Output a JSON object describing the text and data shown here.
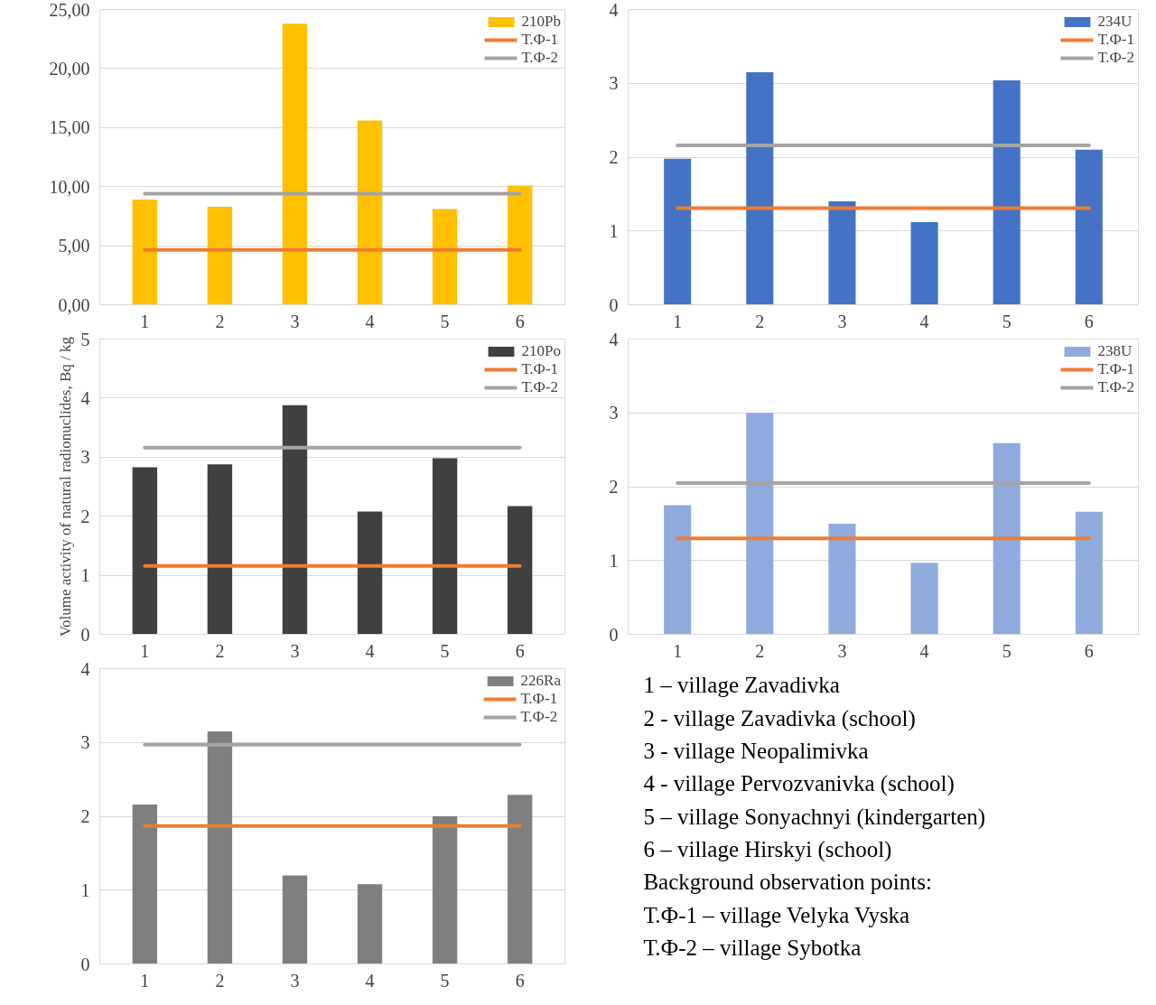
{
  "chart_data": [
    {
      "type": "bar",
      "categories": [
        "1",
        "2",
        "3",
        "4",
        "5",
        "6"
      ],
      "ylim": [
        0,
        25
      ],
      "yticks": [
        {
          "value": 0,
          "label": "0,00"
        },
        {
          "value": 5,
          "label": "5,00"
        },
        {
          "value": 10,
          "label": "10,00"
        },
        {
          "value": 15,
          "label": "15,00"
        },
        {
          "value": 20,
          "label": "20,00"
        },
        {
          "value": 25,
          "label": "25,00"
        }
      ],
      "grid": "y",
      "legend": "top right",
      "series": [
        {
          "name": "210Pb",
          "type": "bar",
          "color": "#ffc000",
          "values": [
            8.9,
            8.3,
            23.8,
            15.6,
            8.1,
            10.1
          ]
        },
        {
          "name": "Т.Ф-1",
          "type": "line",
          "color": "#ed7d31",
          "values": [
            4.65,
            4.65,
            4.65,
            4.65,
            4.65,
            4.65
          ]
        },
        {
          "name": "Т.Ф-2",
          "type": "line",
          "color": "#a5a5a5",
          "values": [
            9.4,
            9.4,
            9.4,
            9.4,
            9.4,
            9.4
          ]
        }
      ]
    },
    {
      "type": "bar",
      "categories": [
        "1",
        "2",
        "3",
        "4",
        "5",
        "6"
      ],
      "ylim": [
        0,
        4
      ],
      "yticks": [
        0,
        1,
        2,
        3,
        4
      ],
      "grid": "y",
      "legend": "top right",
      "series": [
        {
          "name": "234U",
          "type": "bar",
          "color": "#4472c4",
          "values": [
            1.98,
            3.15,
            1.4,
            1.12,
            3.04,
            2.1
          ]
        },
        {
          "name": "Т.Ф-1",
          "type": "line",
          "color": "#ed7d31",
          "values": [
            1.31,
            1.31,
            1.31,
            1.31,
            1.31,
            1.31
          ]
        },
        {
          "name": "Т.Ф-2",
          "type": "line",
          "color": "#a5a5a5",
          "values": [
            2.16,
            2.16,
            2.16,
            2.16,
            2.16,
            2.16
          ]
        }
      ]
    },
    {
      "type": "bar",
      "categories": [
        "1",
        "2",
        "3",
        "4",
        "5",
        "6"
      ],
      "ylim": [
        0,
        5
      ],
      "yticks": [
        0,
        1,
        2,
        3,
        4,
        5
      ],
      "grid": "y",
      "legend": "top right",
      "ylabel": "Volume activity of natural radionuclides, Bq / kg",
      "series": [
        {
          "name": "210Po",
          "type": "bar",
          "color": "#404040",
          "values": [
            2.83,
            2.88,
            3.88,
            2.08,
            2.98,
            2.17
          ]
        },
        {
          "name": "Т.Ф-1",
          "type": "line",
          "color": "#ed7d31",
          "values": [
            1.16,
            1.16,
            1.16,
            1.16,
            1.16,
            1.16
          ]
        },
        {
          "name": "Т.Ф-2",
          "type": "line",
          "color": "#a5a5a5",
          "values": [
            3.16,
            3.16,
            3.16,
            3.16,
            3.16,
            3.16
          ]
        }
      ]
    },
    {
      "type": "bar",
      "categories": [
        "1",
        "2",
        "3",
        "4",
        "5",
        "6"
      ],
      "ylim": [
        0,
        4
      ],
      "yticks": [
        0,
        1,
        2,
        3,
        4
      ],
      "grid": "y",
      "legend": "top right",
      "series": [
        {
          "name": "238U",
          "type": "bar",
          "color": "#8faadc",
          "values": [
            1.75,
            3.0,
            1.5,
            0.97,
            2.59,
            1.66
          ]
        },
        {
          "name": "Т.Ф-1",
          "type": "line",
          "color": "#ed7d31",
          "values": [
            1.3,
            1.3,
            1.3,
            1.3,
            1.3,
            1.3
          ]
        },
        {
          "name": "Т.Ф-2",
          "type": "line",
          "color": "#a5a5a5",
          "values": [
            2.05,
            2.05,
            2.05,
            2.05,
            2.05,
            2.05
          ]
        }
      ]
    },
    {
      "type": "bar",
      "categories": [
        "1",
        "2",
        "3",
        "4",
        "5",
        "6"
      ],
      "ylim": [
        0,
        4
      ],
      "yticks": [
        0,
        1,
        2,
        3,
        4
      ],
      "grid": "y",
      "legend": "top right",
      "series": [
        {
          "name": "226Ra",
          "type": "bar",
          "color": "#7f7f7f",
          "values": [
            2.16,
            3.15,
            1.2,
            1.08,
            2.0,
            2.29
          ]
        },
        {
          "name": "Т.Ф-1",
          "type": "line",
          "color": "#ed7d31",
          "values": [
            1.87,
            1.87,
            1.87,
            1.87,
            1.87,
            1.87
          ]
        },
        {
          "name": "Т.Ф-2",
          "type": "line",
          "color": "#a5a5a5",
          "values": [
            2.97,
            2.97,
            2.97,
            2.97,
            2.97,
            2.97
          ]
        }
      ]
    },
    {
      "type": "other",
      "annotations": [
        "1 – village Zavadivka",
        "2 -  village Zavadivka (school)",
        "3 -  village Neopalimivka",
        "4 - village Pervozvanivka (school)",
        "5 – village Sonyachnyi (kindergarten)",
        "6 – village Hirskyi (school)",
        "Background observation points:",
        "Т.Ф-1 – village Velyka Vyska",
        "Т.Ф-2 – village Sybotka"
      ]
    }
  ]
}
